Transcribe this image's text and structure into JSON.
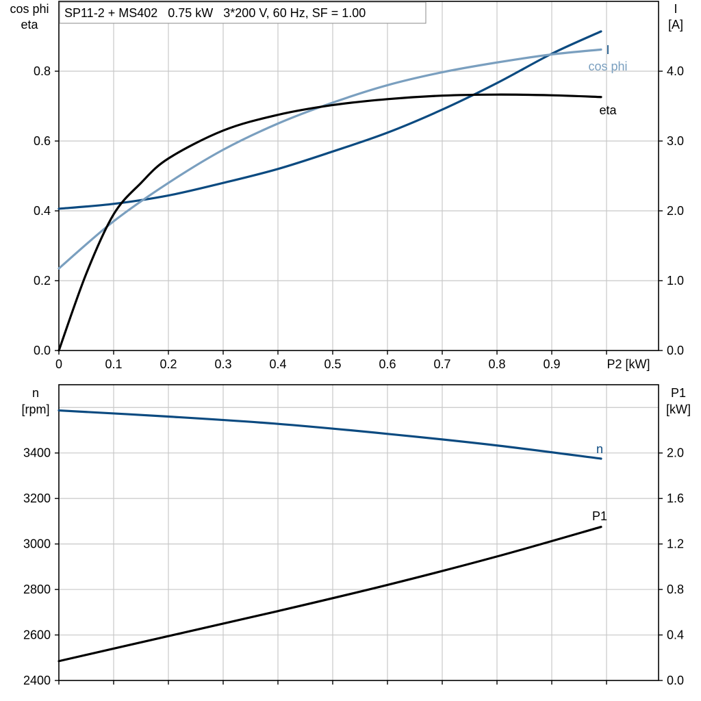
{
  "colors": {
    "I": "#0b4a80",
    "cosphi": "#7a9fbf",
    "eta": "#000000",
    "n": "#0b4a80",
    "P1": "#000000"
  },
  "chart_data": [
    {
      "type": "line",
      "title": "SP11-2 + MS402   0.75 kW   3*200 V, 60 Hz, SF = 1.00",
      "xlabel": "P2 [kW]",
      "ylabel_left": [
        "cos phi",
        "eta"
      ],
      "ylabel_right": [
        "I",
        "[A]"
      ],
      "x_ticks": [
        "0",
        "0.1",
        "0.2",
        "0.3",
        "0.4",
        "0.5",
        "0.6",
        "0.7",
        "0.8",
        "0.9"
      ],
      "y_left_ticks": [
        "0.0",
        "0.2",
        "0.4",
        "0.6",
        "0.8"
      ],
      "y_right_ticks": [
        "0.0",
        "1.0",
        "2.0",
        "3.0",
        "4.0"
      ],
      "xlim": [
        0,
        1.1
      ],
      "ylim_left": [
        0,
        1.0
      ],
      "ylim_right": [
        0,
        5.0
      ],
      "grid": true,
      "series": [
        {
          "name": "I",
          "axis": "right",
          "key": "I",
          "x": [
            0,
            0.1,
            0.2,
            0.3,
            0.4,
            0.5,
            0.6,
            0.7,
            0.8,
            0.9,
            0.99
          ],
          "y": [
            2.03,
            2.1,
            2.22,
            2.4,
            2.6,
            2.85,
            3.12,
            3.45,
            3.83,
            4.25,
            4.57
          ]
        },
        {
          "name": "cos phi",
          "axis": "left",
          "key": "cosphi",
          "x": [
            0,
            0.1,
            0.2,
            0.3,
            0.4,
            0.5,
            0.6,
            0.7,
            0.8,
            0.9,
            0.99
          ],
          "y": [
            0.235,
            0.37,
            0.48,
            0.575,
            0.65,
            0.71,
            0.76,
            0.797,
            0.825,
            0.848,
            0.862
          ]
        },
        {
          "name": "eta",
          "axis": "left",
          "key": "eta",
          "x": [
            0,
            0.05,
            0.1,
            0.15,
            0.2,
            0.3,
            0.4,
            0.5,
            0.6,
            0.7,
            0.8,
            0.9,
            0.99
          ],
          "y": [
            0.0,
            0.22,
            0.39,
            0.48,
            0.55,
            0.63,
            0.675,
            0.703,
            0.72,
            0.73,
            0.733,
            0.731,
            0.726
          ]
        }
      ]
    },
    {
      "type": "line",
      "title": "",
      "xlabel": "",
      "ylabel_left": [
        "n",
        "[rpm]"
      ],
      "ylabel_right": [
        "P1",
        "[kW]"
      ],
      "y_left_ticks": [
        "2400",
        "2600",
        "2800",
        "3000",
        "3200",
        "3400"
      ],
      "y_right_ticks": [
        "0.0",
        "0.4",
        "0.8",
        "1.2",
        "1.6",
        "2.0"
      ],
      "xlim": [
        0,
        1.1
      ],
      "ylim_left": [
        2400,
        3700
      ],
      "ylim_right": [
        0,
        2.6
      ],
      "grid": true,
      "series": [
        {
          "name": "n",
          "axis": "left",
          "key": "n",
          "x": [
            0,
            0.2,
            0.4,
            0.6,
            0.8,
            0.99
          ],
          "y": [
            3587,
            3560,
            3528,
            3484,
            3433,
            3375
          ]
        },
        {
          "name": "P1",
          "axis": "right",
          "key": "P1",
          "x": [
            0,
            0.2,
            0.4,
            0.6,
            0.8,
            0.99
          ],
          "y": [
            0.17,
            0.39,
            0.61,
            0.84,
            1.09,
            1.35
          ]
        }
      ]
    }
  ]
}
